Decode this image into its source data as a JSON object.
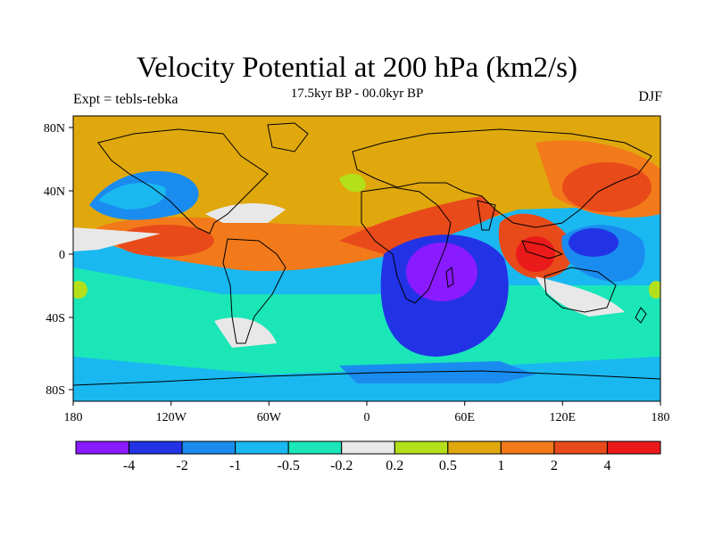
{
  "title": "Velocity Potential at 200 hPa (km2/s)",
  "subtitle": "17.5kyr BP - 00.0kyr BP",
  "left_label": "Expt = tebls-tebka",
  "right_label": "DJF",
  "map": {
    "projection": "cylindrical equidistant",
    "lon_range": [
      -180,
      180
    ],
    "lat_range": [
      -90,
      90
    ],
    "lon_ticks": [
      "180",
      "120W",
      "60W",
      "0",
      "60E",
      "120E",
      "180"
    ],
    "lat_ticks": [
      "80N",
      "40N",
      "0",
      "40S",
      "80S"
    ]
  },
  "colorbar": {
    "colors": [
      "#8a1aff",
      "#2233e6",
      "#1a8cf0",
      "#1ab8f0",
      "#1ae6b8",
      "#e8e8e8",
      "#b3e01a",
      "#e0a80d",
      "#f27a1a",
      "#e84a1a",
      "#eb1a1a"
    ],
    "labels": [
      "-4",
      "-2",
      "-1",
      "-0.5",
      "-0.2",
      "0.2",
      "0.5",
      "1",
      "2",
      "4"
    ]
  },
  "colors": {
    "land_outline": "#000000",
    "frame": "#000000"
  }
}
